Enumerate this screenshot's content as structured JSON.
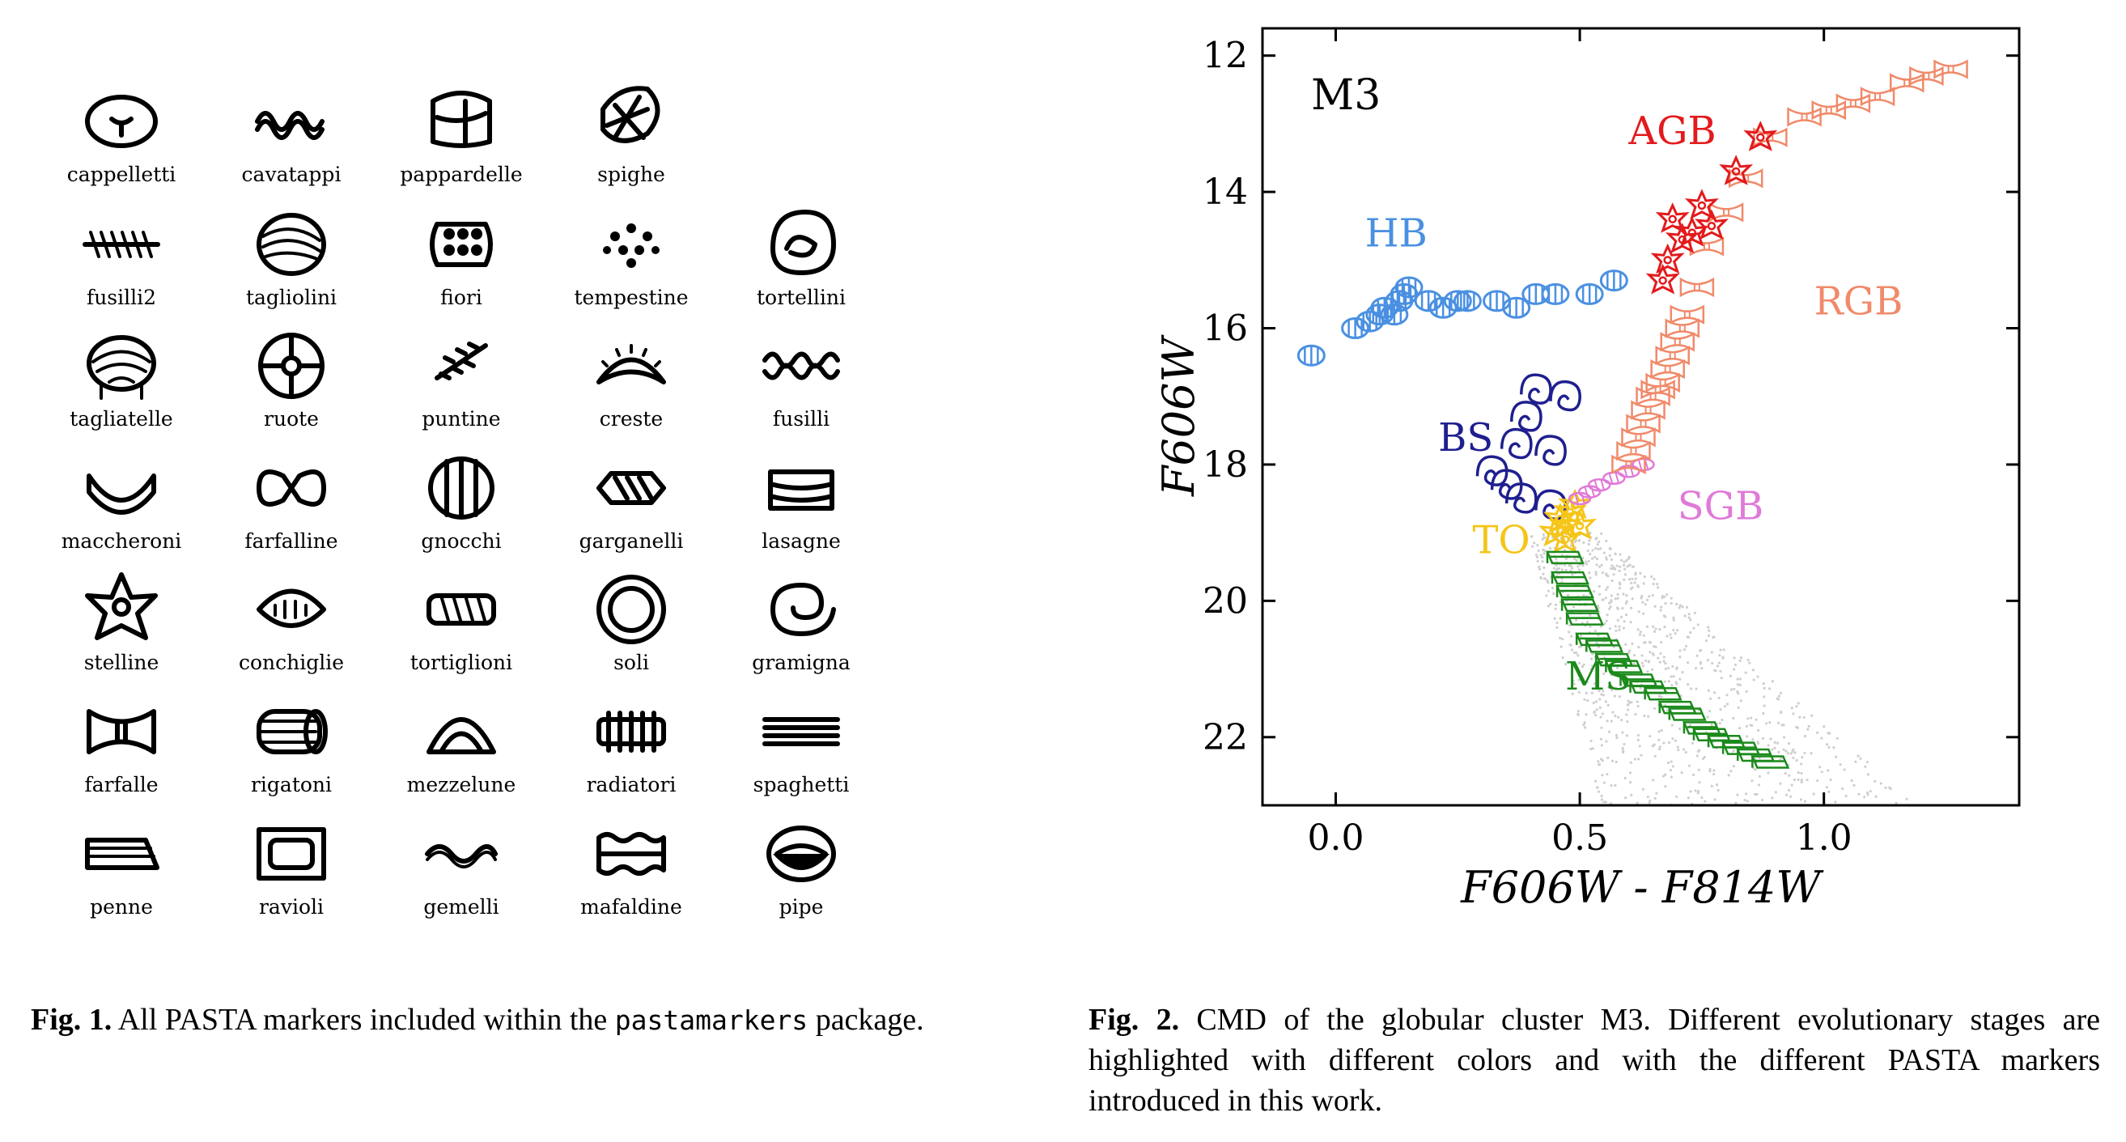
{
  "figure1": {
    "markers": [
      "cappelletti",
      "cavatappi",
      "pappardelle",
      "spighe",
      "",
      "fusilli2",
      "tagliolini",
      "fiori",
      "tempestine",
      "tortellini",
      "tagliatelle",
      "ruote",
      "puntine",
      "creste",
      "fusilli",
      "maccheroni",
      "farfalline",
      "gnocchi",
      "garganelli",
      "lasagne",
      "stelline",
      "conchiglie",
      "tortiglioni",
      "soli",
      "gramigna",
      "farfalle",
      "rigatoni",
      "mezzelune",
      "radiatori",
      "spaghetti",
      "penne",
      "ravioli",
      "gemelli",
      "mafaldine",
      "pipe"
    ],
    "caption_label": "Fig. 1.",
    "caption_pre": "All PASTA markers included within the",
    "caption_code": "pastamarkers",
    "caption_post": "package."
  },
  "figure2": {
    "caption_label": "Fig. 2.",
    "caption_text": "CMD of the globular cluster M3. Different evolutionary stages are highlighted with different colors and with the different PASTA markers introduced in this work."
  },
  "chart_data": {
    "type": "scatter",
    "title": "M3",
    "xlabel": "F606W - F814W",
    "ylabel": "F606W",
    "xlim": [
      -0.15,
      1.4
    ],
    "ylim": [
      23.0,
      11.6
    ],
    "y_inverted": true,
    "xticks": [
      "0.0",
      "0.5",
      "1.0"
    ],
    "yticks": [
      "12",
      "14",
      "16",
      "18",
      "20",
      "22"
    ],
    "grid": false,
    "legend": "none",
    "annotations": [
      {
        "text": "AGB",
        "x": 0.6,
        "y": 13.3,
        "color": "#e31a1c"
      },
      {
        "text": "HB",
        "x": 0.06,
        "y": 14.8,
        "color": "#4a90e2"
      },
      {
        "text": "RGB",
        "x": 0.98,
        "y": 15.8,
        "color": "#f08a6a"
      },
      {
        "text": "BS",
        "x": 0.21,
        "y": 17.8,
        "color": "#1f1f8f"
      },
      {
        "text": "SGB",
        "x": 0.7,
        "y": 18.8,
        "color": "#e07ad8"
      },
      {
        "text": "TO",
        "x": 0.28,
        "y": 19.3,
        "color": "#f5c518"
      },
      {
        "text": "MS",
        "x": 0.47,
        "y": 21.3,
        "color": "#1b8a1b"
      }
    ],
    "series": [
      {
        "name": "HB",
        "marker": "fusilli",
        "color": "#4a90e2",
        "x": [
          -0.05,
          0.04,
          0.07,
          0.09,
          0.1,
          0.12,
          0.13,
          0.14,
          0.15,
          0.19,
          0.22,
          0.25,
          0.27,
          0.33,
          0.37,
          0.41,
          0.45,
          0.52,
          0.57
        ],
        "y": [
          16.4,
          16.0,
          15.9,
          15.8,
          15.7,
          15.8,
          15.6,
          15.5,
          15.4,
          15.6,
          15.7,
          15.6,
          15.6,
          15.6,
          15.7,
          15.5,
          15.5,
          15.5,
          15.3
        ]
      },
      {
        "name": "BS",
        "marker": "cappelletti",
        "color": "#1f1f8f",
        "x": [
          0.32,
          0.35,
          0.37,
          0.39,
          0.38,
          0.41,
          0.44,
          0.44,
          0.47
        ],
        "y": [
          18.1,
          18.3,
          17.7,
          17.3,
          18.5,
          16.9,
          17.8,
          18.6,
          17.0
        ]
      },
      {
        "name": "TO",
        "marker": "stelline",
        "color": "#f5c518",
        "x": [
          0.45,
          0.46,
          0.47,
          0.47,
          0.48,
          0.49,
          0.5
        ],
        "y": [
          19.0,
          18.8,
          18.9,
          19.1,
          18.7,
          18.6,
          18.9
        ]
      },
      {
        "name": "SGB",
        "marker": "fusilli2",
        "color": "#e07ad8",
        "x": [
          0.5,
          0.52,
          0.54,
          0.57,
          0.6,
          0.63
        ],
        "y": [
          18.5,
          18.4,
          18.3,
          18.2,
          18.1,
          18.0
        ]
      },
      {
        "name": "MS",
        "marker": "lasagne",
        "color": "#1b8a1b",
        "x": [
          0.47,
          0.48,
          0.49,
          0.5,
          0.51,
          0.53,
          0.55,
          0.57,
          0.59,
          0.62,
          0.64,
          0.67,
          0.7,
          0.72,
          0.75,
          0.77,
          0.8,
          0.83,
          0.86,
          0.89
        ],
        "y": [
          19.4,
          19.7,
          19.9,
          20.1,
          20.3,
          20.6,
          20.7,
          20.9,
          21.0,
          21.2,
          21.3,
          21.4,
          21.6,
          21.7,
          21.9,
          22.0,
          22.1,
          22.2,
          22.3,
          22.4
        ]
      },
      {
        "name": "RGB",
        "marker": "farfalle",
        "color": "#f08a6a",
        "x": [
          0.6,
          0.61,
          0.62,
          0.63,
          0.64,
          0.65,
          0.66,
          0.67,
          0.68,
          0.69,
          0.7,
          0.71,
          0.72,
          0.74,
          0.76,
          0.8,
          0.84,
          0.89,
          0.96,
          1.01,
          1.06,
          1.11,
          1.17,
          1.21,
          1.26
        ],
        "y": [
          18.0,
          17.8,
          17.6,
          17.4,
          17.2,
          17.0,
          16.9,
          16.8,
          16.6,
          16.4,
          16.2,
          16.0,
          15.8,
          15.4,
          14.8,
          14.3,
          13.8,
          13.2,
          12.9,
          12.8,
          12.7,
          12.6,
          12.4,
          12.3,
          12.2
        ]
      },
      {
        "name": "AGB",
        "marker": "stelline",
        "color": "#e31a1c",
        "x": [
          0.67,
          0.68,
          0.69,
          0.71,
          0.73,
          0.75,
          0.77,
          0.82,
          0.87
        ],
        "y": [
          15.3,
          15.0,
          14.4,
          14.7,
          14.6,
          14.2,
          14.5,
          13.7,
          13.2
        ]
      }
    ]
  }
}
